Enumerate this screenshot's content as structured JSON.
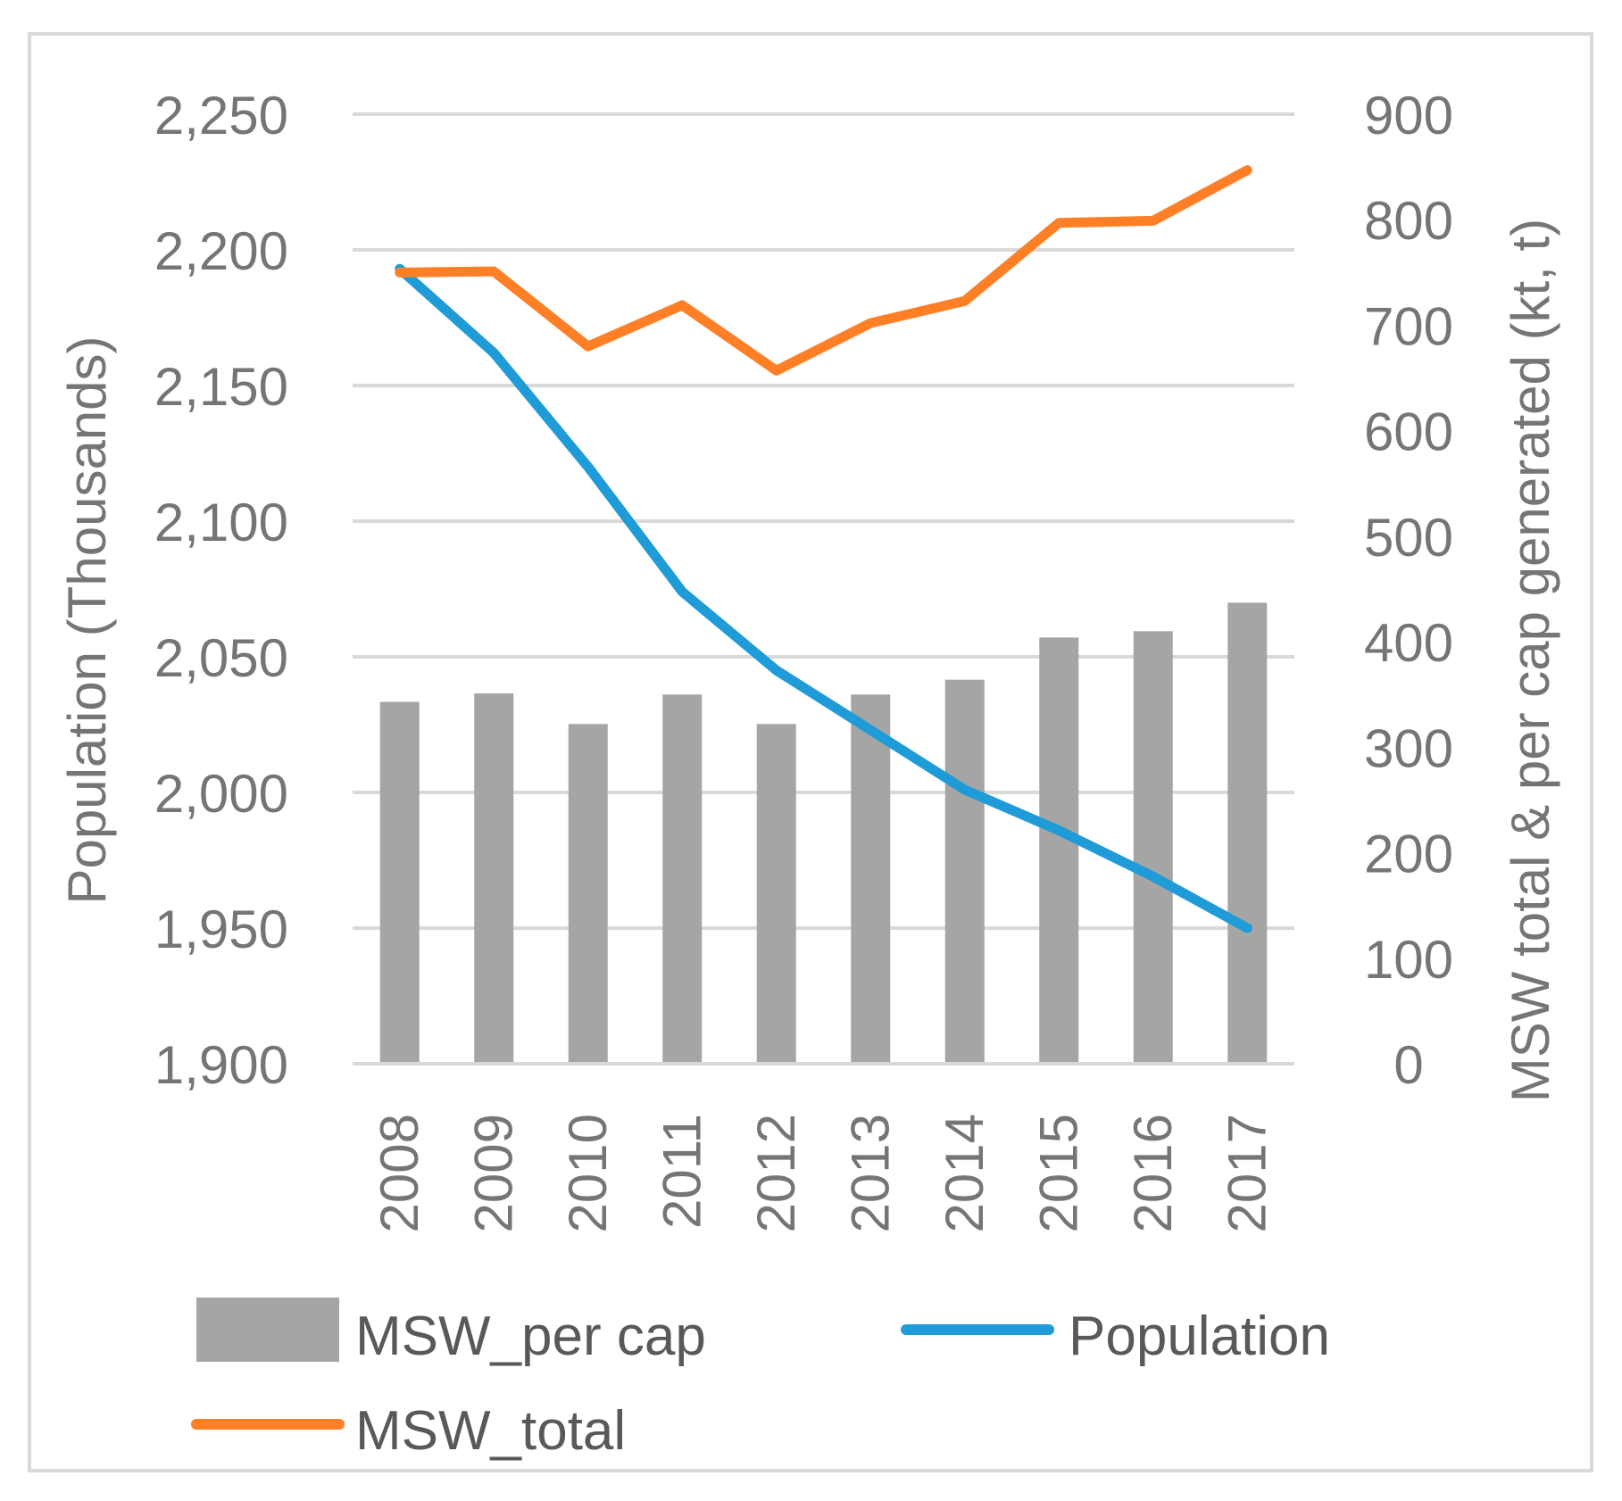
{
  "chart_data": {
    "type": "bar+line",
    "categories": [
      "2008",
      "2009",
      "2010",
      "2011",
      "2012",
      "2013",
      "2014",
      "2015",
      "2016",
      "2017"
    ],
    "left_axis": {
      "label": "Population (Thousands)",
      "ylim": [
        1900,
        2250
      ],
      "ticks": [
        1900,
        1950,
        2000,
        2050,
        2100,
        2150,
        2200,
        2250
      ],
      "tick_labels": [
        "1,900",
        "1,950",
        "2,000",
        "2,050",
        "2,100",
        "2,150",
        "2,200",
        "2,250"
      ]
    },
    "right_axis": {
      "label": "MSW total & per cap generated (kt, t)",
      "ylim": [
        0,
        900
      ],
      "ticks": [
        0,
        100,
        200,
        300,
        400,
        500,
        600,
        700,
        800,
        900
      ],
      "tick_labels": [
        "0",
        "100",
        "200",
        "300",
        "400",
        "500",
        "600",
        "700",
        "800",
        "900"
      ]
    },
    "series": [
      {
        "name": "MSW_per cap",
        "type": "bar",
        "axis": "right",
        "color": "#a5a5a5",
        "values": [
          343,
          351,
          322,
          350,
          322,
          350,
          364,
          404,
          410,
          437
        ]
      },
      {
        "name": "Population",
        "type": "line",
        "axis": "left",
        "color": "#1f9bd7",
        "values": [
          2193,
          2162,
          2120,
          2074,
          2045,
          2023,
          2001,
          1986,
          1969,
          1950
        ]
      },
      {
        "name": "MSW_total",
        "type": "line",
        "axis": "right",
        "color": "#ff7f27",
        "values": [
          750,
          751,
          680,
          719,
          657,
          702,
          723,
          797,
          799,
          847
        ]
      }
    ],
    "grid": true,
    "legend": [
      "MSW_per cap",
      "Population",
      "MSW_total"
    ],
    "legend_position": "bottom"
  }
}
